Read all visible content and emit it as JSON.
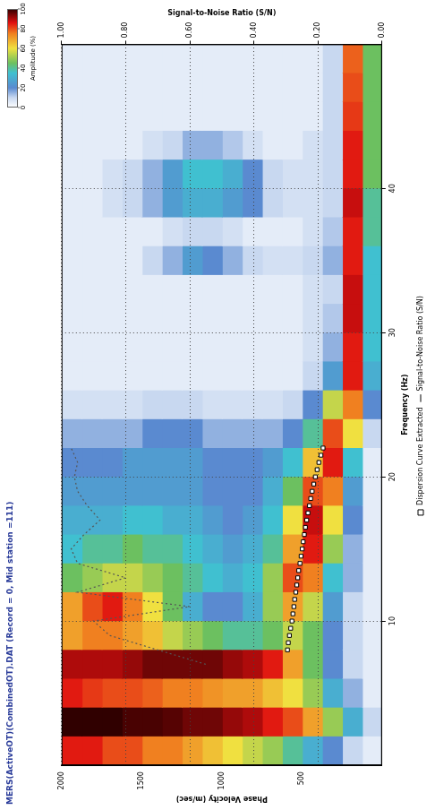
{
  "chart_data": {
    "type": "heatmap",
    "title": "MERS(ActiveOT)(CombinedOT).DAT (Record = 0, Mid station =111)",
    "x_label": "Frequency (Hz)",
    "y_label": "Phase Velocity (m/sec)",
    "y2_label": "Signal-to-Noise Ratio (S/N)",
    "xlim": [
      0,
      50
    ],
    "xticks": [
      10,
      20,
      30,
      40
    ],
    "ylim": [
      0,
      2000
    ],
    "yticks": [
      500,
      1000,
      1500,
      2000
    ],
    "y2lim": [
      0,
      1
    ],
    "y2ticks": [
      {
        "value": 0,
        "label": "0.00"
      },
      {
        "value": 0.2,
        "label": "0.20"
      },
      {
        "value": 0.4,
        "label": "0.40"
      },
      {
        "value": 0.6,
        "label": "0.60"
      },
      {
        "value": 0.8,
        "label": "0.80"
      },
      {
        "value": 1,
        "label": "1.00"
      }
    ],
    "grid": true,
    "legend": "bottom",
    "heatmap": {
      "x_edges": [
        0,
        2,
        4,
        6,
        8,
        10,
        12,
        14,
        16,
        18,
        20,
        22,
        24,
        26,
        28,
        30,
        32,
        34,
        36,
        38,
        40,
        42,
        44,
        46,
        48,
        50
      ],
      "y_edges": [
        0,
        125,
        250,
        375,
        500,
        625,
        750,
        875,
        1000,
        1125,
        1250,
        1375,
        1500,
        1625,
        1750,
        1875,
        2000
      ],
      "cells": [
        [
          5,
          10,
          20,
          30,
          40,
          50,
          55,
          60,
          65,
          70,
          75,
          75,
          80,
          80,
          85,
          85
        ],
        [
          10,
          30,
          50,
          70,
          80,
          85,
          90,
          92,
          95,
          95,
          97,
          98,
          98,
          100,
          100,
          100
        ],
        [
          5,
          15,
          30,
          50,
          60,
          65,
          70,
          70,
          72,
          75,
          75,
          78,
          80,
          80,
          82,
          85
        ],
        [
          5,
          10,
          20,
          45,
          70,
          85,
          90,
          92,
          95,
          95,
          95,
          95,
          92,
          90,
          90,
          90
        ],
        [
          5,
          10,
          20,
          45,
          55,
          45,
          40,
          40,
          45,
          50,
          55,
          65,
          70,
          75,
          75,
          70
        ],
        [
          5,
          10,
          25,
          55,
          70,
          50,
          30,
          20,
          20,
          30,
          45,
          60,
          75,
          85,
          80,
          70
        ],
        [
          5,
          15,
          35,
          75,
          80,
          50,
          35,
          30,
          35,
          40,
          45,
          50,
          55,
          55,
          50,
          45
        ],
        [
          5,
          15,
          50,
          85,
          70,
          40,
          30,
          25,
          30,
          35,
          40,
          40,
          45,
          40,
          40,
          35
        ],
        [
          5,
          20,
          60,
          88,
          60,
          35,
          25,
          20,
          25,
          30,
          30,
          35,
          35,
          30,
          30,
          30
        ],
        [
          5,
          25,
          75,
          80,
          45,
          30,
          20,
          20,
          20,
          25,
          25,
          25,
          25,
          25,
          25,
          25
        ],
        [
          5,
          35,
          85,
          65,
          35,
          25,
          20,
          20,
          20,
          25,
          25,
          25,
          25,
          20,
          20,
          20
        ],
        [
          10,
          60,
          80,
          40,
          20,
          15,
          15,
          15,
          15,
          20,
          20,
          20,
          15,
          15,
          15,
          15
        ],
        [
          20,
          75,
          55,
          20,
          10,
          8,
          8,
          8,
          8,
          10,
          10,
          10,
          8,
          8,
          8,
          8
        ],
        [
          30,
          85,
          25,
          10,
          5,
          5,
          5,
          5,
          5,
          5,
          5,
          5,
          5,
          5,
          5,
          5
        ],
        [
          35,
          85,
          15,
          8,
          5,
          5,
          5,
          5,
          5,
          5,
          5,
          5,
          5,
          5,
          5,
          5
        ],
        [
          35,
          88,
          12,
          8,
          5,
          5,
          5,
          5,
          5,
          5,
          5,
          5,
          5,
          5,
          5,
          5
        ],
        [
          35,
          88,
          10,
          8,
          5,
          5,
          5,
          5,
          5,
          5,
          5,
          5,
          5,
          5,
          5,
          5
        ],
        [
          35,
          85,
          15,
          10,
          8,
          8,
          10,
          15,
          20,
          25,
          15,
          10,
          5,
          5,
          5,
          5
        ],
        [
          40,
          85,
          12,
          8,
          5,
          5,
          5,
          8,
          10,
          10,
          8,
          5,
          5,
          5,
          5,
          5
        ],
        [
          40,
          88,
          10,
          8,
          8,
          10,
          20,
          25,
          30,
          30,
          25,
          15,
          10,
          8,
          5,
          5
        ],
        [
          45,
          85,
          10,
          8,
          8,
          10,
          20,
          30,
          35,
          35,
          25,
          15,
          10,
          8,
          5,
          5
        ],
        [
          45,
          85,
          10,
          8,
          5,
          5,
          8,
          12,
          15,
          15,
          10,
          8,
          5,
          5,
          5,
          5
        ],
        [
          45,
          82,
          10,
          5,
          5,
          5,
          5,
          5,
          5,
          5,
          5,
          5,
          5,
          5,
          5,
          5
        ],
        [
          45,
          80,
          10,
          5,
          5,
          5,
          5,
          5,
          5,
          5,
          5,
          5,
          5,
          5,
          5,
          5
        ],
        [
          45,
          78,
          10,
          5,
          5,
          5,
          5,
          5,
          5,
          5,
          5,
          5,
          5,
          5,
          5,
          5
        ]
      ],
      "colorbar": {
        "title": "Amplitude (%)",
        "range": [
          0,
          100
        ],
        "ticks": [
          0,
          20,
          40,
          60,
          80,
          100
        ]
      }
    },
    "series": [
      {
        "name": "Dispersion Curve Extracted",
        "type": "scatter",
        "marker": "square",
        "color": "#ffffff",
        "x": [
          8,
          8.5,
          9,
          9.5,
          10,
          10.5,
          11,
          11.5,
          12,
          12.5,
          13,
          13.5,
          14,
          14.5,
          15,
          15.5,
          16,
          16.5,
          17,
          17.5,
          18,
          18.5,
          19,
          19.5,
          20,
          20.5,
          21,
          21.5,
          22
        ],
        "values": [
          590,
          585,
          578,
          570,
          562,
          556,
          550,
          545,
          538,
          532,
          526,
          520,
          512,
          505,
          498,
          492,
          485,
          478,
          470,
          462,
          453,
          445,
          436,
          426,
          416,
          405,
          394,
          381,
          368
        ]
      },
      {
        "name": "Signal-to-Noise Ratio (S/N)",
        "type": "line",
        "line_style": "dotted",
        "color": "#555555",
        "axis": "y2",
        "x": [
          7,
          8,
          9,
          10,
          11,
          12,
          13,
          14,
          15,
          16,
          17,
          18,
          19,
          20,
          21,
          22
        ],
        "values": [
          0.55,
          0.7,
          0.85,
          0.9,
          0.6,
          0.95,
          0.8,
          0.95,
          0.97,
          0.93,
          0.88,
          0.92,
          0.95,
          0.96,
          0.95,
          0.97
        ]
      }
    ]
  }
}
